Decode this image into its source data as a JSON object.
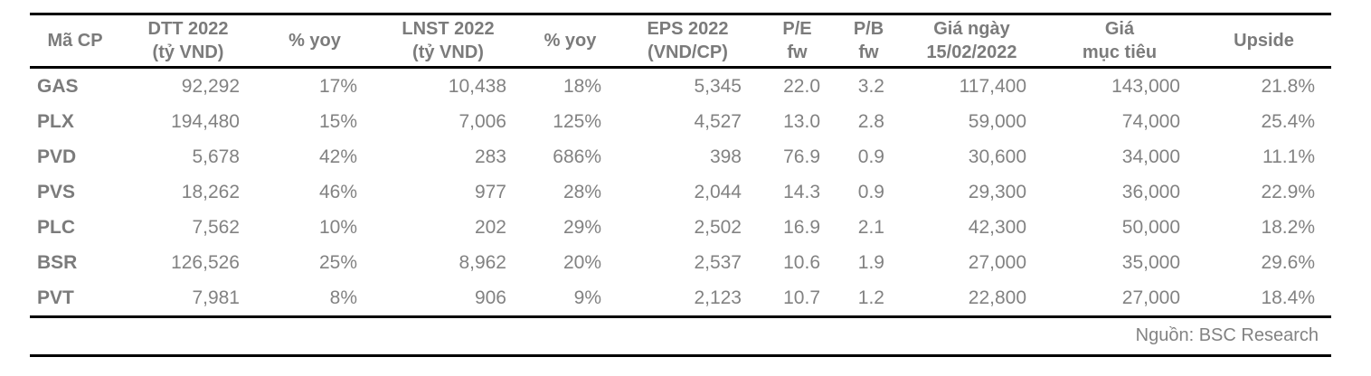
{
  "table": {
    "columns": [
      {
        "id": "ma-cp",
        "label": "Mã CP"
      },
      {
        "id": "dtt-2022",
        "label": "DTT 2022\n(tỷ VND)"
      },
      {
        "id": "yoy-dtt",
        "label": "% yoy"
      },
      {
        "id": "lnst-2022",
        "label": "LNST 2022\n(tỷ VND)"
      },
      {
        "id": "yoy-lnst",
        "label": "% yoy"
      },
      {
        "id": "eps-2022",
        "label": "EPS 2022\n(VND/CP)"
      },
      {
        "id": "pe-fw",
        "label": "P/E\nfw"
      },
      {
        "id": "pb-fw",
        "label": "P/B\nfw"
      },
      {
        "id": "gia-ngay",
        "label": "Giá ngày\n15/02/2022"
      },
      {
        "id": "gia-muc-tieu",
        "label": "Giá\nmục tiêu"
      },
      {
        "id": "upside",
        "label": "Upside"
      }
    ],
    "rows": [
      [
        "GAS",
        "92,292",
        "17%",
        "10,438",
        "18%",
        "5,345",
        "22.0",
        "3.2",
        "117,400",
        "143,000",
        "21.8%"
      ],
      [
        "PLX",
        "194,480",
        "15%",
        "7,006",
        "125%",
        "4,527",
        "13.0",
        "2.8",
        "59,000",
        "74,000",
        "25.4%"
      ],
      [
        "PVD",
        "5,678",
        "42%",
        "283",
        "686%",
        "398",
        "76.9",
        "0.9",
        "30,600",
        "34,000",
        "11.1%"
      ],
      [
        "PVS",
        "18,262",
        "46%",
        "977",
        "28%",
        "2,044",
        "14.3",
        "0.9",
        "29,300",
        "36,000",
        "22.9%"
      ],
      [
        "PLC",
        "7,562",
        "10%",
        "202",
        "29%",
        "2,502",
        "16.9",
        "2.1",
        "42,300",
        "50,000",
        "18.2%"
      ],
      [
        "BSR",
        "126,526",
        "25%",
        "8,962",
        "20%",
        "2,537",
        "10.6",
        "1.9",
        "27,000",
        "35,000",
        "29.6%"
      ],
      [
        "PVT",
        "7,981",
        "8%",
        "906",
        "9%",
        "2,123",
        "10.7",
        "1.2",
        "22,800",
        "27,000",
        "18.4%"
      ]
    ],
    "source": "Nguồn: BSC Research"
  },
  "colors": {
    "text_gray": "#828282",
    "bold_gray": "#7b7b7b",
    "border_black": "#000000",
    "background": "#ffffff"
  }
}
